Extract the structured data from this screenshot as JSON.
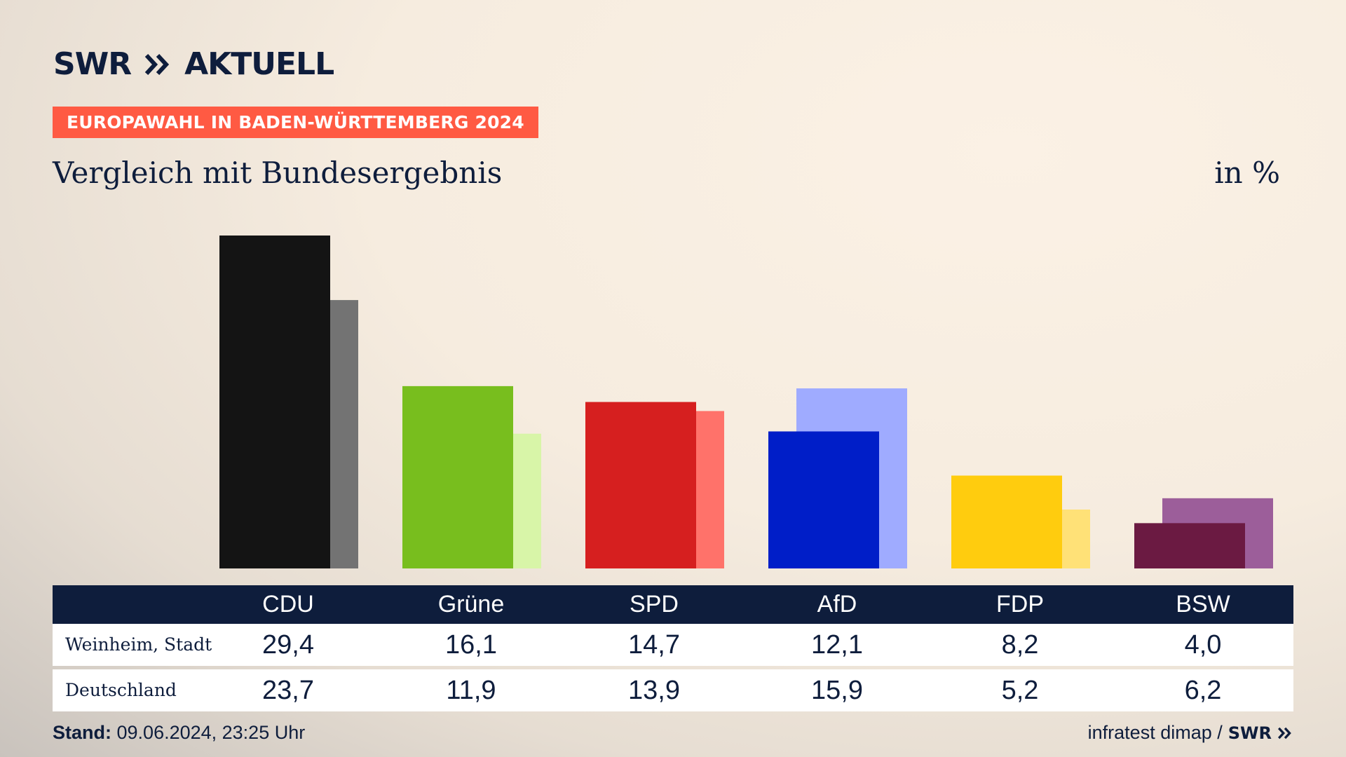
{
  "header": {
    "logo_text": "SWR",
    "logo_suffix": "AKTUELL",
    "badge": "EUROPAWAHL IN BADEN-WÜRTTEMBERG 2024",
    "subtitle": "Vergleich mit Bundesergebnis",
    "unit": "in %"
  },
  "table": {
    "row1_label": "Weinheim, Stadt",
    "row2_label": "Deutschland"
  },
  "footer": {
    "stand_label": "Stand:",
    "stand_value": "09.06.2024, 23:25 Uhr",
    "source": "infratest dimap /",
    "source_logo": "SWR"
  },
  "chart_data": {
    "type": "bar",
    "title": "Vergleich mit Bundesergebnis",
    "unit": "in %",
    "categories": [
      "CDU",
      "Grüne",
      "SPD",
      "AfD",
      "FDP",
      "BSW"
    ],
    "series": [
      {
        "name": "Weinheim, Stadt",
        "values": [
          "29,4",
          "16,1",
          "14,7",
          "12,1",
          "8,2",
          "4,0"
        ]
      },
      {
        "name": "Deutschland",
        "values": [
          "23,7",
          "11,9",
          "13,9",
          "15,9",
          "5,2",
          "6,2"
        ]
      }
    ],
    "ylim": [
      0,
      30
    ],
    "colors": {
      "primary": [
        "#141414",
        "#78be1e",
        "#d61f1f",
        "#001ec8",
        "#ffcc0e",
        "#6b1a42"
      ],
      "secondary": [
        "#737373",
        "#d8f5a8",
        "#ff726a",
        "#9fabff",
        "#ffe177",
        "#9c5e9a"
      ]
    }
  },
  "colors": {
    "navy": "#0e1d3c",
    "badge": "#ff5a43"
  }
}
